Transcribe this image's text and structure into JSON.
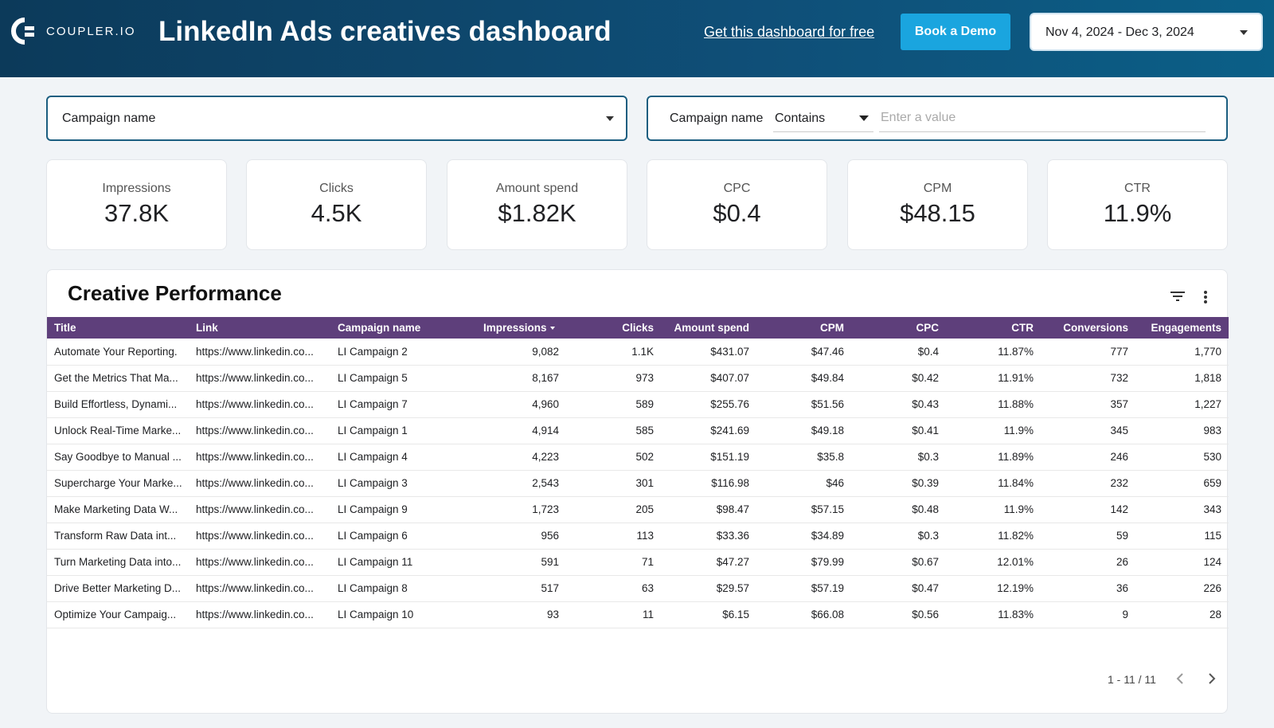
{
  "header": {
    "logo": "COUPLER.IO",
    "title": "LinkedIn Ads creatives dashboard",
    "link": "Get this dashboard for free",
    "button": "Book a Demo",
    "date_range": "Nov 4, 2024 - Dec 3, 2024"
  },
  "filters": {
    "dropdown": "Campaign name",
    "text_filter": {
      "label": "Campaign name",
      "operator": "Contains",
      "placeholder": "Enter a value"
    }
  },
  "kpis": [
    {
      "label": "Impressions",
      "value": "37.8K"
    },
    {
      "label": "Clicks",
      "value": "4.5K"
    },
    {
      "label": "Amount spend",
      "value": "$1.82K"
    },
    {
      "label": "CPC",
      "value": "$0.4"
    },
    {
      "label": "CPM",
      "value": "$48.15"
    },
    {
      "label": "CTR",
      "value": "11.9%"
    }
  ],
  "table": {
    "title": "Creative Performance",
    "columns": [
      "Title",
      "Link",
      "Campaign name",
      "Impressions",
      "Clicks",
      "Amount spend",
      "CPM",
      "CPC",
      "CTR",
      "Conversions",
      "Engagements"
    ],
    "rows": [
      [
        "Automate Your Reporting.",
        "https://www.linkedin.co...",
        "LI Campaign 2",
        "9,082",
        "1.1K",
        "$431.07",
        "$47.46",
        "$0.4",
        "11.87%",
        "777",
        "1,770"
      ],
      [
        "Get the Metrics That Ma...",
        "https://www.linkedin.co...",
        "LI Campaign 5",
        "8,167",
        "973",
        "$407.07",
        "$49.84",
        "$0.42",
        "11.91%",
        "732",
        "1,818"
      ],
      [
        "Build Effortless, Dynami...",
        "https://www.linkedin.co...",
        "LI Campaign 7",
        "4,960",
        "589",
        "$255.76",
        "$51.56",
        "$0.43",
        "11.88%",
        "357",
        "1,227"
      ],
      [
        "Unlock Real-Time Marke...",
        "https://www.linkedin.co...",
        "LI Campaign 1",
        "4,914",
        "585",
        "$241.69",
        "$49.18",
        "$0.41",
        "11.9%",
        "345",
        "983"
      ],
      [
        "Say Goodbye to Manual ...",
        "https://www.linkedin.co...",
        "LI Campaign 4",
        "4,223",
        "502",
        "$151.19",
        "$35.8",
        "$0.3",
        "11.89%",
        "246",
        "530"
      ],
      [
        "Supercharge Your Marke...",
        "https://www.linkedin.co...",
        "LI Campaign 3",
        "2,543",
        "301",
        "$116.98",
        "$46",
        "$0.39",
        "11.84%",
        "232",
        "659"
      ],
      [
        "Make Marketing Data W...",
        "https://www.linkedin.co...",
        "LI Campaign 9",
        "1,723",
        "205",
        "$98.47",
        "$57.15",
        "$0.48",
        "11.9%",
        "142",
        "343"
      ],
      [
        "Transform Raw Data int...",
        "https://www.linkedin.co...",
        "LI Campaign 6",
        "956",
        "113",
        "$33.36",
        "$34.89",
        "$0.3",
        "11.82%",
        "59",
        "115"
      ],
      [
        "Turn Marketing Data into...",
        "https://www.linkedin.co...",
        "LI Campaign 11",
        "591",
        "71",
        "$47.27",
        "$79.99",
        "$0.67",
        "12.01%",
        "26",
        "124"
      ],
      [
        "Drive Better Marketing D...",
        "https://www.linkedin.co...",
        "LI Campaign 8",
        "517",
        "63",
        "$29.57",
        "$57.19",
        "$0.47",
        "12.19%",
        "36",
        "226"
      ],
      [
        "Optimize Your Campaig...",
        "https://www.linkedin.co...",
        "LI Campaign 10",
        "93",
        "11",
        "$6.15",
        "$66.08",
        "$0.56",
        "11.83%",
        "9",
        "28"
      ]
    ],
    "pagination": "1 - 11 / 11"
  }
}
